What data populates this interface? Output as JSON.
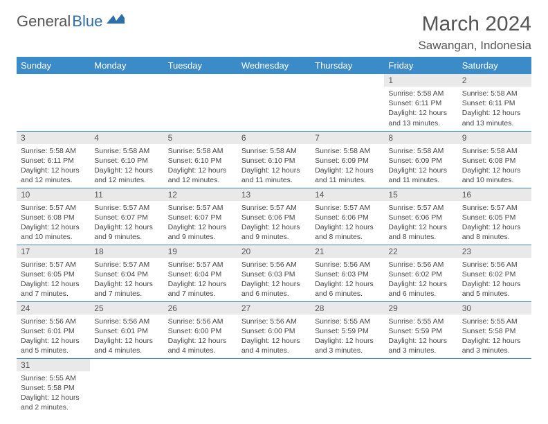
{
  "logo": {
    "word1": "General",
    "word2": "Blue"
  },
  "header": {
    "month_title": "March 2024",
    "location": "Sawangan, Indonesia"
  },
  "colors": {
    "header_bg": "#3b8bc8",
    "daynum_bg": "#e9e9e9",
    "border": "#3b8bc8"
  },
  "weekdays": [
    "Sunday",
    "Monday",
    "Tuesday",
    "Wednesday",
    "Thursday",
    "Friday",
    "Saturday"
  ],
  "weeks": [
    [
      null,
      null,
      null,
      null,
      null,
      {
        "n": "1",
        "sr": "Sunrise: 5:58 AM",
        "ss": "Sunset: 6:11 PM",
        "dl1": "Daylight: 12 hours",
        "dl2": "and 13 minutes."
      },
      {
        "n": "2",
        "sr": "Sunrise: 5:58 AM",
        "ss": "Sunset: 6:11 PM",
        "dl1": "Daylight: 12 hours",
        "dl2": "and 13 minutes."
      }
    ],
    [
      {
        "n": "3",
        "sr": "Sunrise: 5:58 AM",
        "ss": "Sunset: 6:11 PM",
        "dl1": "Daylight: 12 hours",
        "dl2": "and 12 minutes."
      },
      {
        "n": "4",
        "sr": "Sunrise: 5:58 AM",
        "ss": "Sunset: 6:10 PM",
        "dl1": "Daylight: 12 hours",
        "dl2": "and 12 minutes."
      },
      {
        "n": "5",
        "sr": "Sunrise: 5:58 AM",
        "ss": "Sunset: 6:10 PM",
        "dl1": "Daylight: 12 hours",
        "dl2": "and 12 minutes."
      },
      {
        "n": "6",
        "sr": "Sunrise: 5:58 AM",
        "ss": "Sunset: 6:10 PM",
        "dl1": "Daylight: 12 hours",
        "dl2": "and 11 minutes."
      },
      {
        "n": "7",
        "sr": "Sunrise: 5:58 AM",
        "ss": "Sunset: 6:09 PM",
        "dl1": "Daylight: 12 hours",
        "dl2": "and 11 minutes."
      },
      {
        "n": "8",
        "sr": "Sunrise: 5:58 AM",
        "ss": "Sunset: 6:09 PM",
        "dl1": "Daylight: 12 hours",
        "dl2": "and 11 minutes."
      },
      {
        "n": "9",
        "sr": "Sunrise: 5:58 AM",
        "ss": "Sunset: 6:08 PM",
        "dl1": "Daylight: 12 hours",
        "dl2": "and 10 minutes."
      }
    ],
    [
      {
        "n": "10",
        "sr": "Sunrise: 5:57 AM",
        "ss": "Sunset: 6:08 PM",
        "dl1": "Daylight: 12 hours",
        "dl2": "and 10 minutes."
      },
      {
        "n": "11",
        "sr": "Sunrise: 5:57 AM",
        "ss": "Sunset: 6:07 PM",
        "dl1": "Daylight: 12 hours",
        "dl2": "and 9 minutes."
      },
      {
        "n": "12",
        "sr": "Sunrise: 5:57 AM",
        "ss": "Sunset: 6:07 PM",
        "dl1": "Daylight: 12 hours",
        "dl2": "and 9 minutes."
      },
      {
        "n": "13",
        "sr": "Sunrise: 5:57 AM",
        "ss": "Sunset: 6:06 PM",
        "dl1": "Daylight: 12 hours",
        "dl2": "and 9 minutes."
      },
      {
        "n": "14",
        "sr": "Sunrise: 5:57 AM",
        "ss": "Sunset: 6:06 PM",
        "dl1": "Daylight: 12 hours",
        "dl2": "and 8 minutes."
      },
      {
        "n": "15",
        "sr": "Sunrise: 5:57 AM",
        "ss": "Sunset: 6:06 PM",
        "dl1": "Daylight: 12 hours",
        "dl2": "and 8 minutes."
      },
      {
        "n": "16",
        "sr": "Sunrise: 5:57 AM",
        "ss": "Sunset: 6:05 PM",
        "dl1": "Daylight: 12 hours",
        "dl2": "and 8 minutes."
      }
    ],
    [
      {
        "n": "17",
        "sr": "Sunrise: 5:57 AM",
        "ss": "Sunset: 6:05 PM",
        "dl1": "Daylight: 12 hours",
        "dl2": "and 7 minutes."
      },
      {
        "n": "18",
        "sr": "Sunrise: 5:57 AM",
        "ss": "Sunset: 6:04 PM",
        "dl1": "Daylight: 12 hours",
        "dl2": "and 7 minutes."
      },
      {
        "n": "19",
        "sr": "Sunrise: 5:57 AM",
        "ss": "Sunset: 6:04 PM",
        "dl1": "Daylight: 12 hours",
        "dl2": "and 7 minutes."
      },
      {
        "n": "20",
        "sr": "Sunrise: 5:56 AM",
        "ss": "Sunset: 6:03 PM",
        "dl1": "Daylight: 12 hours",
        "dl2": "and 6 minutes."
      },
      {
        "n": "21",
        "sr": "Sunrise: 5:56 AM",
        "ss": "Sunset: 6:03 PM",
        "dl1": "Daylight: 12 hours",
        "dl2": "and 6 minutes."
      },
      {
        "n": "22",
        "sr": "Sunrise: 5:56 AM",
        "ss": "Sunset: 6:02 PM",
        "dl1": "Daylight: 12 hours",
        "dl2": "and 6 minutes."
      },
      {
        "n": "23",
        "sr": "Sunrise: 5:56 AM",
        "ss": "Sunset: 6:02 PM",
        "dl1": "Daylight: 12 hours",
        "dl2": "and 5 minutes."
      }
    ],
    [
      {
        "n": "24",
        "sr": "Sunrise: 5:56 AM",
        "ss": "Sunset: 6:01 PM",
        "dl1": "Daylight: 12 hours",
        "dl2": "and 5 minutes."
      },
      {
        "n": "25",
        "sr": "Sunrise: 5:56 AM",
        "ss": "Sunset: 6:01 PM",
        "dl1": "Daylight: 12 hours",
        "dl2": "and 4 minutes."
      },
      {
        "n": "26",
        "sr": "Sunrise: 5:56 AM",
        "ss": "Sunset: 6:00 PM",
        "dl1": "Daylight: 12 hours",
        "dl2": "and 4 minutes."
      },
      {
        "n": "27",
        "sr": "Sunrise: 5:56 AM",
        "ss": "Sunset: 6:00 PM",
        "dl1": "Daylight: 12 hours",
        "dl2": "and 4 minutes."
      },
      {
        "n": "28",
        "sr": "Sunrise: 5:55 AM",
        "ss": "Sunset: 5:59 PM",
        "dl1": "Daylight: 12 hours",
        "dl2": "and 3 minutes."
      },
      {
        "n": "29",
        "sr": "Sunrise: 5:55 AM",
        "ss": "Sunset: 5:59 PM",
        "dl1": "Daylight: 12 hours",
        "dl2": "and 3 minutes."
      },
      {
        "n": "30",
        "sr": "Sunrise: 5:55 AM",
        "ss": "Sunset: 5:58 PM",
        "dl1": "Daylight: 12 hours",
        "dl2": "and 3 minutes."
      }
    ],
    [
      {
        "n": "31",
        "sr": "Sunrise: 5:55 AM",
        "ss": "Sunset: 5:58 PM",
        "dl1": "Daylight: 12 hours",
        "dl2": "and 2 minutes."
      },
      null,
      null,
      null,
      null,
      null,
      null
    ]
  ]
}
